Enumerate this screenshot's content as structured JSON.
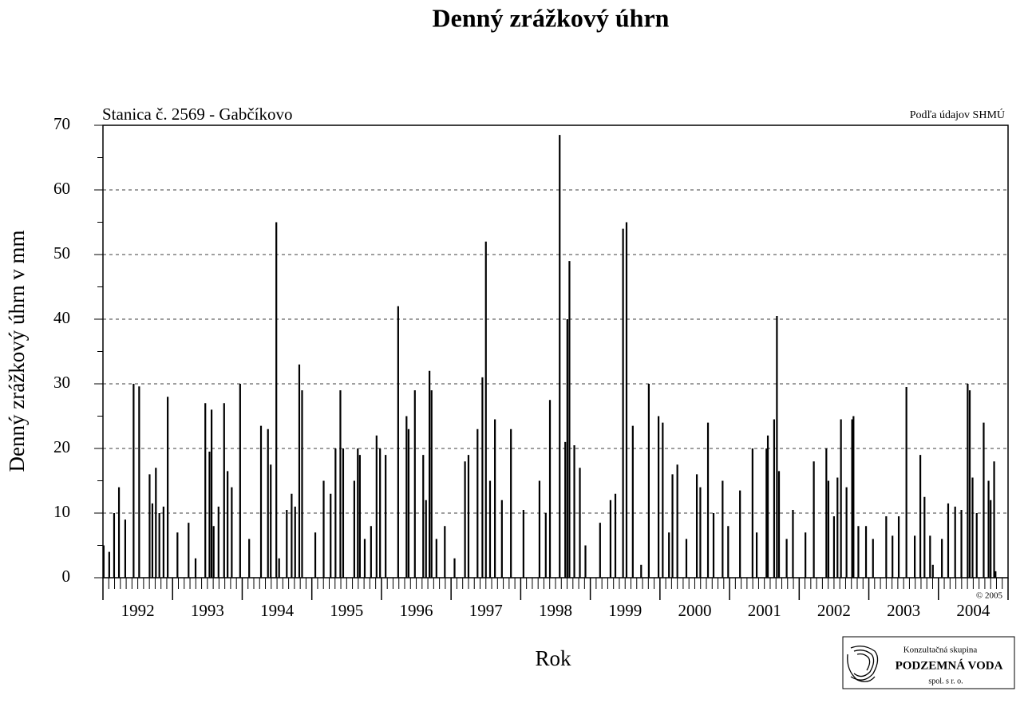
{
  "chart_data": {
    "type": "spike",
    "title": "Denný zrážkový úhrn",
    "subtitle_left": "Stanica č. 2569 - Gabčíkovo",
    "subtitle_right": "Podľa údajov SHMÚ",
    "y_label": "Denný zrážkový úhrn v mm",
    "x_label": "Rok",
    "copyright": "© 2005",
    "color": "#000000",
    "grid": true,
    "ylim": [
      0,
      70
    ],
    "yticks": [
      0,
      10,
      20,
      30,
      40,
      50,
      60,
      70
    ],
    "xlim": [
      1992,
      2005
    ],
    "xticks": [
      1992,
      1993,
      1994,
      1995,
      1996,
      1997,
      1998,
      1999,
      2000,
      2001,
      2002,
      2003,
      2004,
      2005
    ],
    "x_labels": [
      "1992",
      "1993",
      "1994",
      "1995",
      "1996",
      "1997",
      "1998",
      "1999",
      "2000",
      "2001",
      "2002",
      "2003",
      "2004"
    ],
    "x": [
      1992.01,
      1992.09,
      1992.16,
      1992.23,
      1992.32,
      1992.44,
      1992.52,
      1992.67,
      1992.71,
      1992.76,
      1992.81,
      1992.87,
      1992.93,
      1993.07,
      1993.23,
      1993.33,
      1993.47,
      1993.53,
      1993.56,
      1993.59,
      1993.66,
      1993.74,
      1993.79,
      1993.85,
      1993.97,
      1994.1,
      1994.27,
      1994.37,
      1994.41,
      1994.49,
      1994.53,
      1994.64,
      1994.71,
      1994.76,
      1994.82,
      1994.86,
      1995.05,
      1995.17,
      1995.27,
      1995.34,
      1995.41,
      1995.45,
      1995.61,
      1995.66,
      1995.69,
      1995.76,
      1995.85,
      1995.93,
      1995.98,
      1996.06,
      1996.24,
      1996.36,
      1996.39,
      1996.48,
      1996.6,
      1996.64,
      1996.69,
      1996.72,
      1996.79,
      1996.91,
      1997.05,
      1997.2,
      1997.25,
      1997.38,
      1997.45,
      1997.5,
      1997.56,
      1997.63,
      1997.73,
      1997.86,
      1998.04,
      1998.27,
      1998.36,
      1998.42,
      1998.56,
      1998.64,
      1998.67,
      1998.7,
      1998.77,
      1998.85,
      1998.93,
      1999.14,
      1999.29,
      1999.36,
      1999.47,
      1999.52,
      1999.61,
      1999.73,
      1999.84,
      1999.98,
      2000.04,
      2000.13,
      2000.18,
      2000.25,
      2000.38,
      2000.53,
      2000.58,
      2000.69,
      2000.77,
      2000.9,
      2000.98,
      2001.15,
      2001.33,
      2001.39,
      2001.53,
      2001.55,
      2001.64,
      2001.68,
      2001.71,
      2001.82,
      2001.91,
      2002.09,
      2002.21,
      2002.39,
      2002.42,
      2002.5,
      2002.55,
      2002.6,
      2002.68,
      2002.76,
      2002.78,
      2002.85,
      2002.96,
      2003.06,
      2003.25,
      2003.34,
      2003.43,
      2003.54,
      2003.66,
      2003.74,
      2003.8,
      2003.88,
      2003.92,
      2004.05,
      2004.14,
      2004.24,
      2004.33,
      2004.42,
      2004.45,
      2004.49,
      2004.55,
      2004.65,
      2004.72,
      2004.75,
      2004.8,
      2004.82
    ],
    "values": [
      5,
      4,
      10,
      14,
      9,
      30,
      29.6,
      16,
      11.5,
      17,
      10,
      11,
      28,
      7,
      8.5,
      3,
      27,
      19.5,
      26,
      8,
      11,
      27,
      16.5,
      14,
      30,
      6,
      23.5,
      23,
      17.5,
      55,
      3,
      10.5,
      13,
      11,
      33,
      29,
      7,
      15,
      13,
      20,
      29,
      20,
      15,
      20,
      19,
      6,
      8,
      22,
      20,
      19,
      42,
      25,
      23,
      29,
      19,
      12,
      32,
      29,
      6,
      8,
      3,
      18,
      19,
      23,
      31,
      52,
      15,
      24.5,
      12,
      23,
      10.5,
      15,
      10,
      27.5,
      68.5,
      21,
      40,
      49,
      20.5,
      17,
      5,
      8.5,
      12,
      13,
      54,
      55,
      23.5,
      2,
      30,
      25,
      24,
      7,
      16,
      17.5,
      6,
      16,
      14,
      24,
      10,
      15,
      8,
      13.5,
      20,
      7,
      20,
      22,
      24.5,
      40.5,
      16.5,
      6,
      10.5,
      7,
      18,
      20,
      15,
      9.5,
      15.5,
      24.5,
      14,
      24.5,
      25,
      8,
      8,
      6,
      9.5,
      6.5,
      9.5,
      29.5,
      6.5,
      19,
      12.5,
      6.5,
      2,
      6,
      11.5,
      11,
      10.5,
      30,
      29,
      15.5,
      10,
      24,
      15,
      12,
      18,
      1
    ]
  },
  "logo": {
    "line1": "Konzultačná skupina",
    "line2": "PODZEMNÁ VODA",
    "line3": "spol. s r. o."
  }
}
